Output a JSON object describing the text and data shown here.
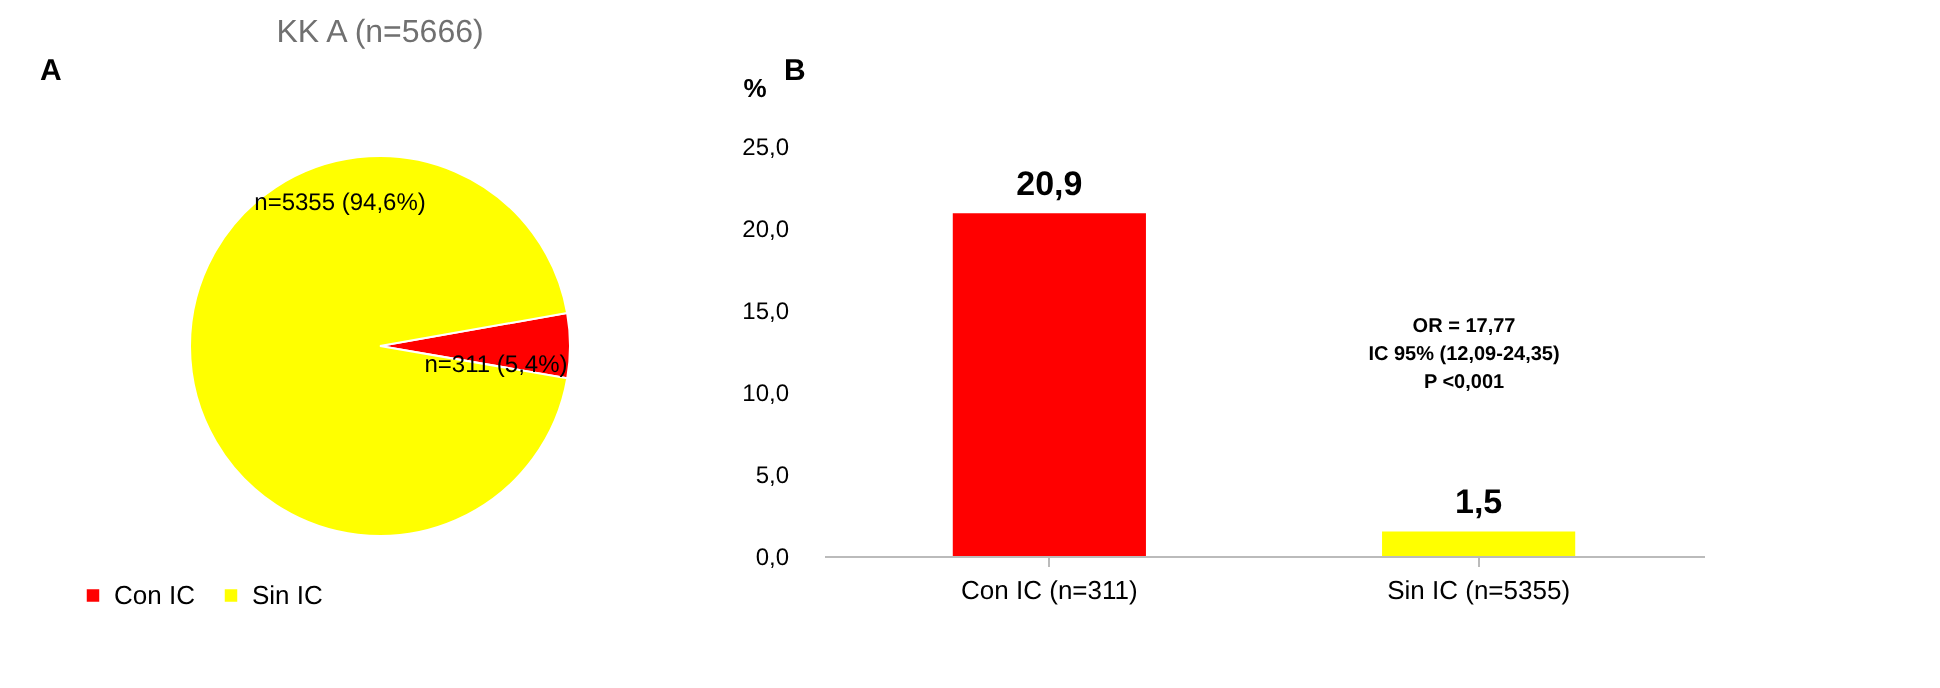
{
  "chart_data": [
    {
      "type": "pie",
      "title": "KK A (n=5666)",
      "annotations": [
        "A"
      ],
      "categories": [
        "Con IC",
        "Sin IC"
      ],
      "values": [
        311,
        5355
      ],
      "colors": [
        "#ff0000",
        "#ffff00"
      ],
      "value_labels": [
        "n=311 (5,4%)",
        "n=5355 (94,6%)"
      ],
      "legend": "bottom"
    },
    {
      "type": "bar",
      "annotations": [
        "B",
        "OR = 17,77",
        "IC 95% (12,09-24,35)",
        "P <0,001"
      ],
      "ylabel": "%",
      "categories": [
        "Con IC (n=311)",
        "Sin IC (n=5355)"
      ],
      "values": [
        20.9,
        1.5
      ],
      "colors": [
        "#ff0000",
        "#ffff00"
      ],
      "value_labels": [
        "20,9",
        "1,5"
      ],
      "ylim": [
        0,
        25
      ],
      "yticks": [
        {
          "value": 0,
          "label": "0,0"
        },
        {
          "value": 5,
          "label": "5,0"
        },
        {
          "value": 10,
          "label": "10,0"
        },
        {
          "value": 15,
          "label": "15,0"
        },
        {
          "value": 20,
          "label": "20,0"
        },
        {
          "value": 25,
          "label": "25,0"
        }
      ]
    }
  ]
}
